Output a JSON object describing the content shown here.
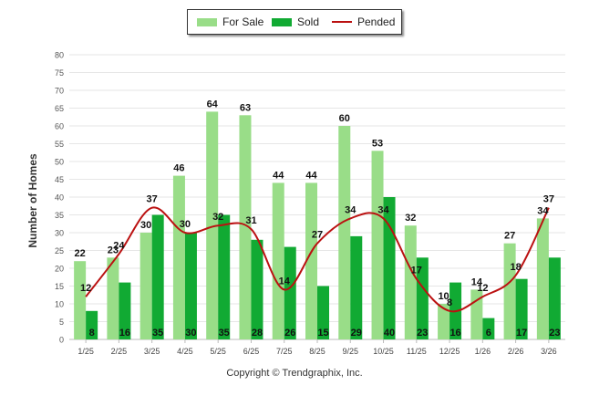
{
  "chart_data": {
    "type": "bar",
    "title": "",
    "xlabel": "",
    "ylabel": "Number of Homes",
    "ylim": [
      0,
      80
    ],
    "yticks": [
      0,
      5,
      10,
      15,
      20,
      25,
      30,
      35,
      40,
      45,
      50,
      55,
      60,
      65,
      70,
      75,
      80
    ],
    "categories": [
      "1/25",
      "2/25",
      "3/25",
      "4/25",
      "5/25",
      "6/25",
      "7/25",
      "8/25",
      "9/25",
      "10/25",
      "11/25",
      "12/25",
      "1/26",
      "2/26",
      "3/26"
    ],
    "series": [
      {
        "name": "For Sale",
        "kind": "bar",
        "color": "#99dd88",
        "values": [
          22,
          23,
          30,
          46,
          64,
          63,
          44,
          44,
          60,
          53,
          32,
          10,
          14,
          27,
          34
        ]
      },
      {
        "name": "Sold",
        "kind": "bar",
        "color": "#11aa33",
        "values": [
          8,
          16,
          35,
          30,
          35,
          28,
          26,
          15,
          29,
          40,
          23,
          16,
          6,
          17,
          23
        ]
      },
      {
        "name": "Pended",
        "kind": "line",
        "color": "#bb1111",
        "values": [
          12,
          24,
          37,
          30,
          32,
          31,
          14,
          27,
          34,
          34,
          17,
          8,
          12,
          18,
          37
        ]
      }
    ],
    "legend_position": "top-center",
    "grid": true
  },
  "footer": {
    "copyright": "Copyright © Trendgraphix, Inc."
  }
}
